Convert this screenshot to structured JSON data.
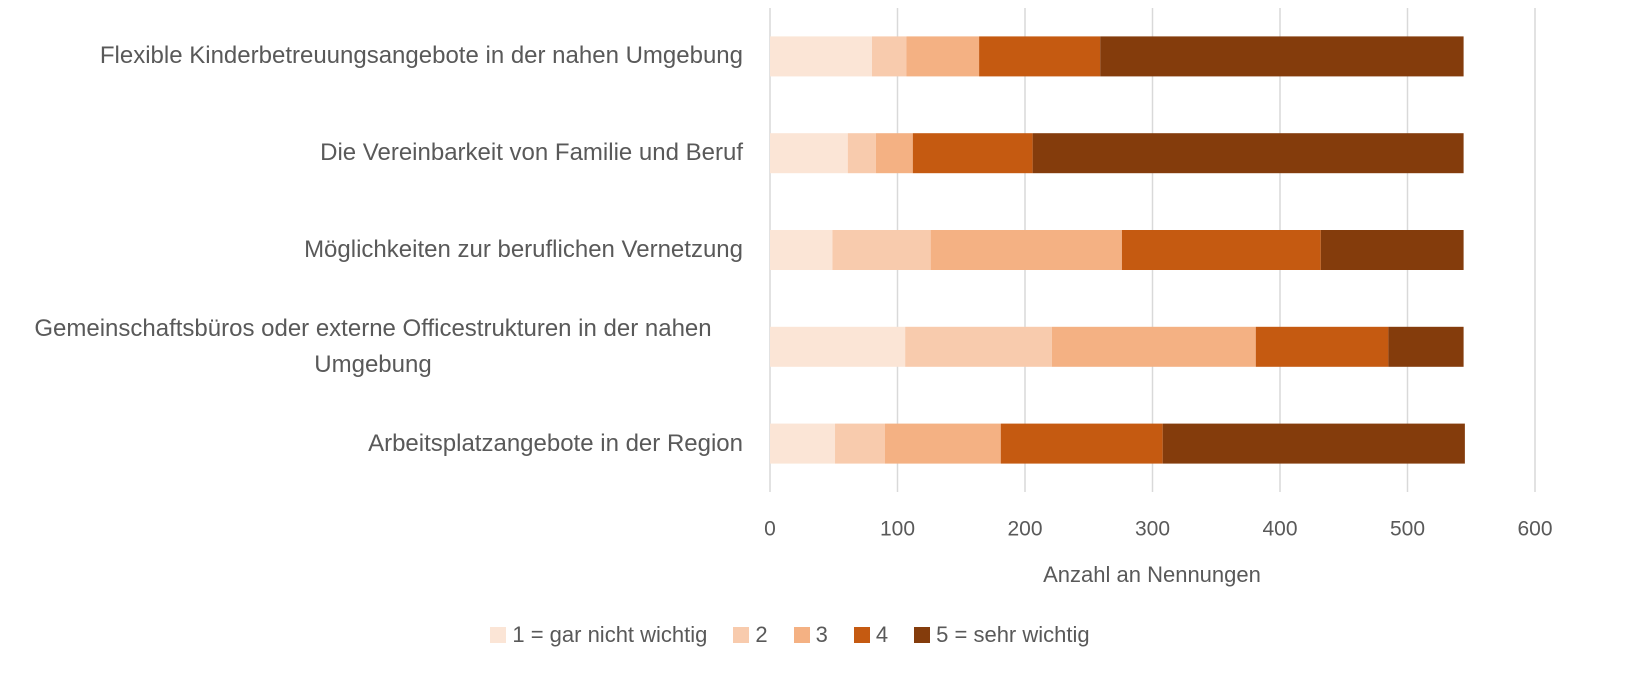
{
  "chart_data": {
    "type": "stacked-barh",
    "x_label": "Anzahl an Nennungen",
    "categories": [
      "Flexible Kinderbetreuungsangebote in der nahen Umgebung",
      "Die Vereinbarkeit von Familie und Beruf",
      "Möglichkeiten zur beruflichen Vernetzung",
      "Gemeinschaftsbüros oder externe Officestrukturen in der nahen Umgebung",
      "Arbeitsplatzangebote in der Region"
    ],
    "series": [
      {
        "name": "1 = gar nicht wichtig",
        "color": "#fbe5d6",
        "values": [
          80,
          61,
          49,
          106,
          51
        ]
      },
      {
        "name": "2",
        "color": "#f8cbad",
        "values": [
          27,
          22,
          77,
          115,
          39
        ]
      },
      {
        "name": "3",
        "color": "#f4b183",
        "values": [
          57,
          29,
          150,
          160,
          91
        ]
      },
      {
        "name": "4",
        "color": "#c55a11",
        "values": [
          95,
          94,
          156,
          104,
          127
        ]
      },
      {
        "name": "5 = sehr wichtig",
        "color": "#843c0c",
        "values": [
          285,
          338,
          112,
          59,
          237
        ]
      }
    ],
    "xlim": [
      0,
      600
    ],
    "xticks": [
      0,
      100,
      200,
      300,
      400,
      500,
      600
    ],
    "grid": true,
    "legend": "bottom"
  }
}
